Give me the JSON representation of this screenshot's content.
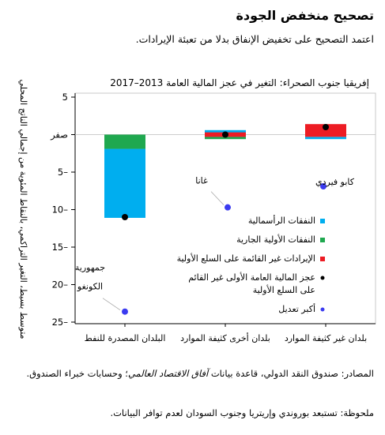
{
  "header": {
    "title": "تصحيح منخفض الجودة",
    "subtitle": "اعتمد التصحيح على تخفيض الإنفاق بدلا من تعبئة الإيرادات."
  },
  "footer": {
    "source_prefix": "المصادر: صندوق النقد الدولي، قاعدة بيانات",
    "source_italic": "آفاق الاقتصاد العالمي",
    "source_suffix": "؛ وحسابات خبراء الصندوق.",
    "note": "ملحوظة: تستبعد بوروندي وإريتريا وجنوب السودان لعدم توافر البيانات."
  },
  "colors": {
    "capital": "#00aeef",
    "current_primary": "#1fa84f",
    "revenue": "#ed1c24",
    "deficit": "#000000",
    "extreme": "#3b3bf0"
  },
  "chart_data": {
    "type": "bar",
    "title": "إفريقيا جنوب الصحراء: التغير في عجز المالية العامة 2013–2017",
    "ylabel": "متوسط بسيط، التغير التراكمي، بالنقاط المئوية من إجمالي الناتج المحلي",
    "ylim": [
      -5,
      25
    ],
    "y_inverted": true,
    "yticks": [
      5,
      0,
      -5,
      -10,
      -15,
      -20,
      -25
    ],
    "ytick_labels": [
      "5",
      "صفر",
      "5–",
      "10–",
      "15–",
      "20–",
      "25–"
    ],
    "categories": [
      "البلدان المصدرة للنفط",
      "بلدان أخرى كثيفة الموارد",
      "بلدان غير كثيفة الموارد"
    ],
    "series": [
      {
        "name": "النفقات الرأسمالية",
        "key": "capital",
        "ranges": [
          [
            1.9,
            11.1
          ],
          [
            -0.6,
            0.3
          ],
          [
            0.3,
            0.6
          ]
        ]
      },
      {
        "name": "النفقات الأولية الجارية",
        "key": "current_primary",
        "ranges": [
          [
            0,
            1.9
          ],
          [
            0.3,
            0.6
          ],
          [
            -1.0,
            -0.4
          ]
        ]
      },
      {
        "name": "الإيرادات غير القائمة على السلع الأولية",
        "key": "revenue",
        "ranges": [
          [
            0,
            0
          ],
          [
            -0.3,
            0.3
          ],
          [
            -1.4,
            0.3
          ]
        ]
      }
    ],
    "deficit": {
      "name": "عجز المالية العامة الأولى غير القائم على السلع الأولية",
      "values": [
        11.0,
        0.0,
        -1.0
      ]
    },
    "extremes": {
      "name": "أكبر تعديل",
      "points": [
        {
          "category": 0,
          "value": 23.6,
          "label": "جمهورية الكونغو"
        },
        {
          "category": 1,
          "value": 9.7,
          "label": "غانا"
        },
        {
          "category": 2,
          "value": 6.9,
          "label": "كابو فيردي"
        }
      ]
    },
    "legend_placement": "bottom-right"
  }
}
